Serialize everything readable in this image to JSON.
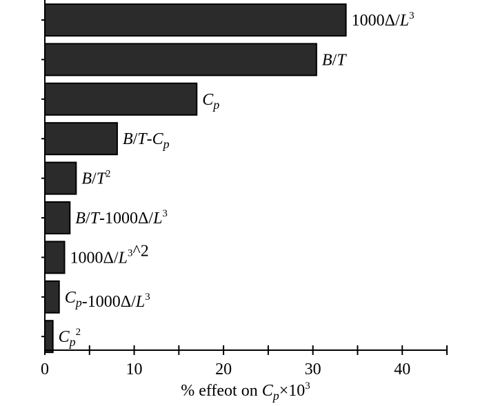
{
  "chart_data": {
    "type": "bar",
    "orientation": "horizontal",
    "categories": [
      {
        "text": "1000Δ/L",
        "sup": "3",
        "italic_var": true
      },
      {
        "text": "B/T"
      },
      {
        "text": "C",
        "sub": "p"
      },
      {
        "text": "B/T-C",
        "sub": "p"
      },
      {
        "text": "B/T",
        "sup": "2"
      },
      {
        "text": "B/T-1000Δ/L",
        "sup": "3"
      },
      {
        "text": "1000Δ/L",
        "sup": "3",
        "tail": "^2"
      },
      {
        "text": "C",
        "sub": "p",
        "tail": "-1000Δ/L",
        "tail_sup": "3"
      },
      {
        "text": "C",
        "sub": "p",
        "sup": "2"
      }
    ],
    "values": [
      33.7,
      30.4,
      17.0,
      8.1,
      3.5,
      2.8,
      2.2,
      1.6,
      0.9
    ],
    "xlim": [
      0,
      45
    ],
    "xticks": [
      "0",
      "10",
      "20",
      "30",
      "40"
    ],
    "xtick_values": [
      0,
      10,
      20,
      30,
      40
    ],
    "xlabel": {
      "prefix": "% effeot on ",
      "var": "C",
      "sub": "p",
      "mid": "×10",
      "sup": "3"
    },
    "grid": false,
    "bar_color": "#2b2b2b",
    "edge_color": "#000000"
  }
}
